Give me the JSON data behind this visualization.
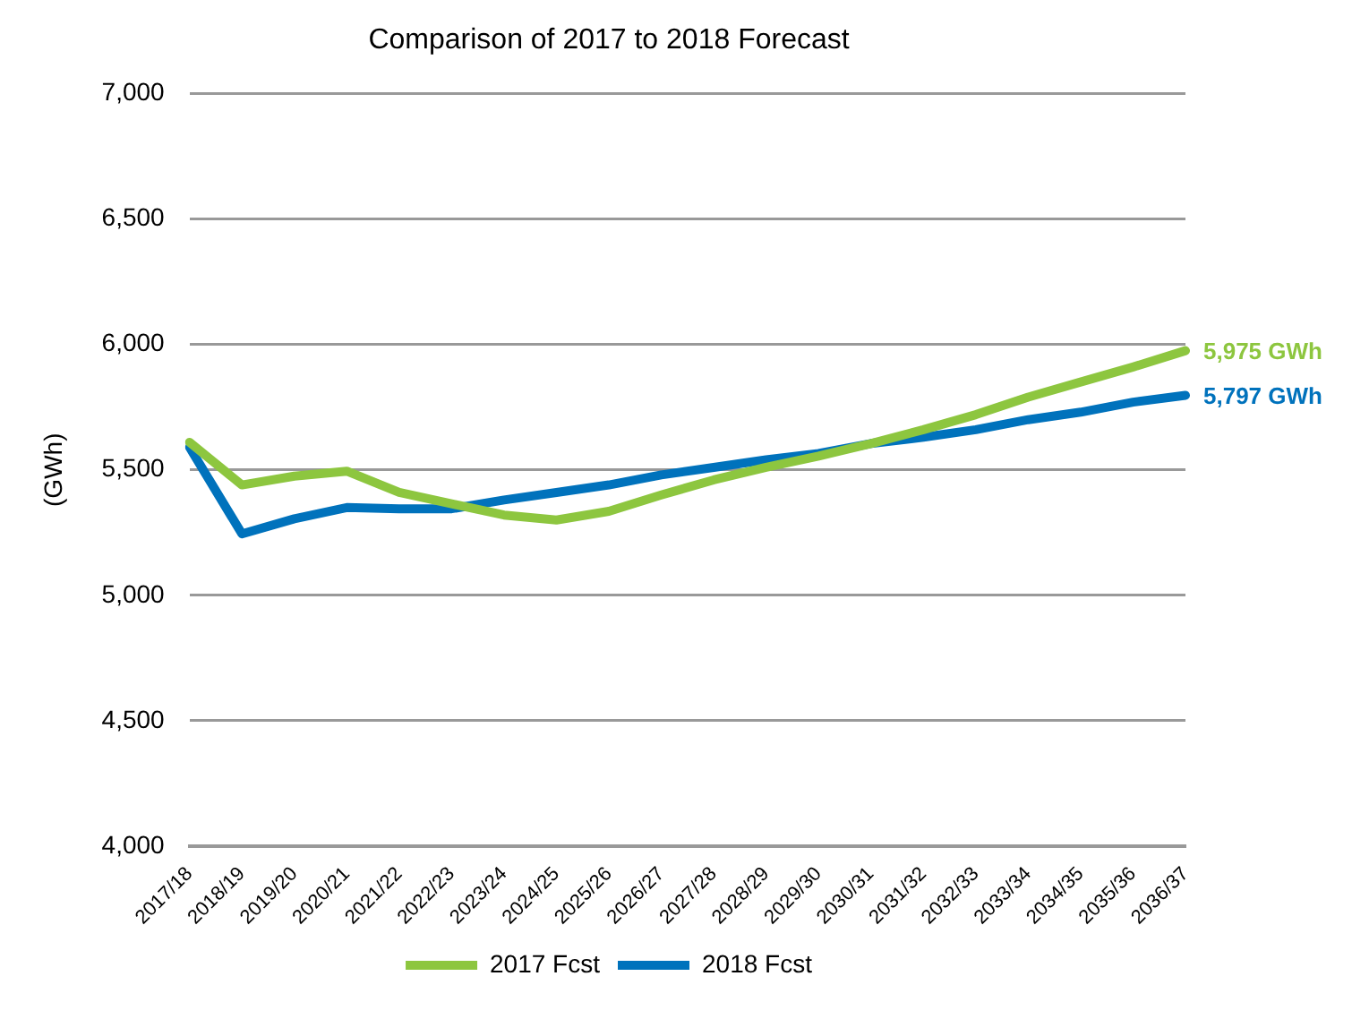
{
  "chart_data": {
    "type": "line",
    "title": "Comparison of 2017 to 2018 Forecast",
    "ylabel": "(GWh)",
    "categories": [
      "2017/18",
      "2018/19",
      "2019/20",
      "2020/21",
      "2021/22",
      "2022/23",
      "2023/24",
      "2024/25",
      "2025/26",
      "2026/27",
      "2027/28",
      "2028/29",
      "2029/30",
      "2030/31",
      "2031/32",
      "2032/33",
      "2033/34",
      "2034/35",
      "2035/36",
      "2036/37"
    ],
    "series": [
      {
        "name": "2017 Fcst",
        "color": "#8dc63f",
        "values": [
          5610,
          5440,
          5475,
          5495,
          5410,
          5365,
          5320,
          5300,
          5335,
          5400,
          5460,
          5510,
          5555,
          5605,
          5660,
          5720,
          5790,
          5850,
          5910,
          5975
        ]
      },
      {
        "name": "2018 Fcst",
        "color": "#0072bc",
        "values": [
          5590,
          5245,
          5305,
          5350,
          5345,
          5345,
          5380,
          5410,
          5440,
          5480,
          5510,
          5540,
          5565,
          5605,
          5630,
          5660,
          5700,
          5730,
          5770,
          5797
        ]
      }
    ],
    "annotations": [
      {
        "text": "5,975 GWh",
        "x": "2036/37",
        "y": 5975
      },
      {
        "text": "5,797 GWh",
        "x": "2036/37",
        "y": 5797
      }
    ],
    "ylim": [
      4000,
      7000
    ],
    "yticks": [
      {
        "value": 4000,
        "label": "4,000"
      },
      {
        "value": 4500,
        "label": "4,500"
      },
      {
        "value": 5000,
        "label": "5,000"
      },
      {
        "value": 5500,
        "label": "5,500"
      },
      {
        "value": 6000,
        "label": "6,000"
      },
      {
        "value": 6500,
        "label": "6,500"
      },
      {
        "value": 7000,
        "label": "7,000"
      }
    ],
    "grid": "y",
    "legend": "bottom",
    "marker": "none",
    "line_style": "solid"
  }
}
